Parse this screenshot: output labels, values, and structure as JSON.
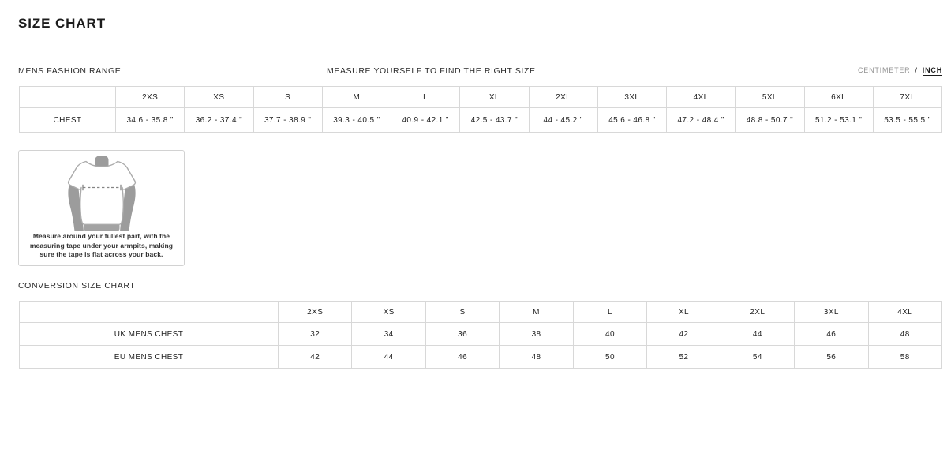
{
  "page": {
    "title": "SIZE CHART"
  },
  "header": {
    "range_label": "MENS FASHION RANGE",
    "measure_label": "MEASURE YOURSELF TO FIND THE RIGHT SIZE",
    "unit_toggle": {
      "centimeter_label": "CENTIMETER",
      "separator": "/",
      "inch_label": "INCH",
      "active_unit": "INCH"
    }
  },
  "size_table": {
    "row_header": "CHEST",
    "columns": [
      "2XS",
      "XS",
      "S",
      "M",
      "L",
      "XL",
      "2XL",
      "3XL",
      "4XL",
      "5XL",
      "6XL",
      "7XL"
    ],
    "chest_inches": [
      "34.6 - 35.8 \"",
      "36.2 - 37.4 \"",
      "37.7 - 38.9 \"",
      "39.3 - 40.5 \"",
      "40.9 - 42.1 \"",
      "42.5 - 43.7 \"",
      "44 - 45.2 \"",
      "45.6 - 46.8 \"",
      "47.2 - 48.4 \"",
      "48.8 - 50.7 \"",
      "51.2 - 53.1 \"",
      "53.5 - 55.5 \""
    ]
  },
  "measure_info": {
    "illustration": "tshirt-chest-measurement",
    "caption": "Measure around your fullest part, with the measuring tape under your armpits, making sure the tape is flat across your back."
  },
  "conversion": {
    "title": "CONVERSION SIZE CHART",
    "columns": [
      "2XS",
      "XS",
      "S",
      "M",
      "L",
      "XL",
      "2XL",
      "3XL",
      "4XL"
    ],
    "rows": [
      {
        "label": "UK MENS CHEST",
        "values": [
          "32",
          "34",
          "36",
          "38",
          "40",
          "42",
          "44",
          "46",
          "48"
        ]
      },
      {
        "label": "EU MENS CHEST",
        "values": [
          "42",
          "44",
          "46",
          "48",
          "50",
          "52",
          "54",
          "56",
          "58"
        ]
      }
    ]
  },
  "colors": {
    "text": "#1f1f1f",
    "muted": "#949494",
    "border": "#d8d8d8",
    "skin_gray": "#9c9c9c",
    "shirt_outline": "#ababab",
    "dash_line": "#848484"
  }
}
